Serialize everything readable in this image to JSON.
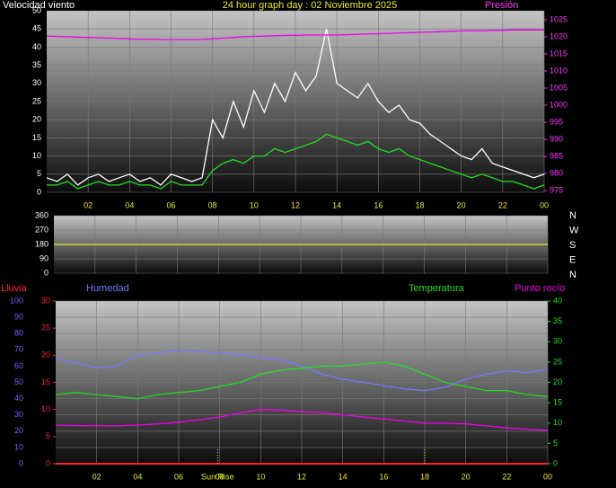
{
  "chart_data": [
    {
      "type": "line",
      "title": "24 hour graph day : 02 Noviembre 2025",
      "y_label": "Velocidad viento",
      "y2_label": "Presión",
      "axis_colors": {
        "y": "#ffffff",
        "y2": "#ff33ff"
      },
      "xlim": [
        0,
        24
      ],
      "xticks": [
        {
          "value": 2,
          "label": "02"
        },
        {
          "value": 4,
          "label": "04"
        },
        {
          "value": 6,
          "label": "06"
        },
        {
          "value": 8,
          "label": "08"
        },
        10,
        12,
        14,
        16,
        18,
        20,
        22,
        {
          "value": 24,
          "label": "00"
        }
      ],
      "ylim": [
        0,
        50
      ],
      "yticks": [
        0,
        5,
        10,
        15,
        20,
        25,
        30,
        35,
        40,
        45,
        50
      ],
      "y2lim": [
        974.5,
        1027.6
      ],
      "y2ticks": [
        975,
        980,
        985,
        990,
        995,
        1000,
        1005,
        1010,
        1015,
        1020,
        1025
      ],
      "grid": true,
      "x": [
        0,
        0.5,
        1,
        1.5,
        2,
        2.5,
        3,
        3.5,
        4,
        4.5,
        5,
        5.5,
        6,
        6.5,
        7,
        7.5,
        8,
        8.5,
        9,
        9.5,
        10,
        10.5,
        11,
        11.5,
        12,
        12.5,
        13,
        13.5,
        14,
        14.5,
        15,
        15.5,
        16,
        16.5,
        17,
        17.5,
        18,
        18.5,
        19,
        19.5,
        20,
        20.5,
        21,
        21.5,
        22,
        22.5,
        23,
        23.5,
        24
      ],
      "series": [
        {
          "color": "#ffffff",
          "values": [
            4,
            3,
            5,
            2,
            4,
            5,
            3,
            4,
            5,
            3,
            4,
            2,
            5,
            4,
            3,
            4,
            20,
            15,
            25,
            18,
            28,
            22,
            30,
            25,
            33,
            28,
            32,
            45,
            30,
            28,
            26,
            30,
            25,
            22,
            24,
            20,
            19,
            16,
            14,
            12,
            10,
            9,
            12,
            8,
            7,
            6,
            5,
            4,
            5
          ]
        },
        {
          "color": "#22dd22",
          "values": [
            2,
            2,
            3,
            1,
            2,
            3,
            2,
            2,
            3,
            2,
            2,
            1,
            3,
            2,
            2,
            2,
            6,
            8,
            9,
            8,
            10,
            10,
            12,
            11,
            12,
            13,
            14,
            16,
            15,
            14,
            13,
            14,
            12,
            11,
            12,
            10,
            9,
            8,
            7,
            6,
            5,
            4,
            5,
            4,
            3,
            3,
            2,
            1,
            2
          ]
        },
        {
          "color": "#ee00ee",
          "axis": "y2",
          "values": [
            1020.2,
            1020.1,
            1020,
            1019.9,
            1019.8,
            1019.7,
            1019.6,
            1019.5,
            1019.4,
            1019.3,
            1019.3,
            1019.2,
            1019.2,
            1019.2,
            1019.2,
            1019.2,
            1019.4,
            1019.6,
            1019.8,
            1020,
            1020.1,
            1020.2,
            1020.3,
            1020.4,
            1020.4,
            1020.5,
            1020.5,
            1020.5,
            1020.5,
            1020.6,
            1020.7,
            1020.8,
            1020.9,
            1021,
            1021.1,
            1021.2,
            1021.3,
            1021.4,
            1021.5,
            1021.6,
            1021.7,
            1021.8,
            1021.8,
            1021.9,
            1021.9,
            1022,
            1022,
            1022,
            1022
          ]
        }
      ]
    },
    {
      "type": "line",
      "axis_colors": {
        "y": "#ffffff",
        "y2": "#ffffff"
      },
      "xlim": [
        0,
        24
      ],
      "xticks": [
        2,
        4,
        6,
        8,
        10,
        12,
        14,
        16,
        18,
        20,
        22,
        24
      ],
      "ylim": [
        0,
        360
      ],
      "yticks": [
        0,
        90,
        180,
        270,
        360
      ],
      "y2_labels": [
        "N",
        "W",
        "S",
        "E",
        "N"
      ],
      "grid": true,
      "x": [
        0,
        24
      ],
      "series": [
        {
          "color": "#e8e830",
          "values": [
            180,
            180
          ]
        }
      ]
    },
    {
      "type": "line",
      "axis_colors": {
        "y": "#6666ff",
        "y2": "#22dd22",
        "y3": "#ff2222"
      },
      "xlim": [
        0,
        24
      ],
      "xticks": [
        {
          "value": 2,
          "label": "02"
        },
        {
          "value": 4,
          "label": "04"
        },
        {
          "value": 6,
          "label": "06"
        },
        {
          "value": 8,
          "label": "08"
        },
        10,
        12,
        14,
        16,
        18,
        20,
        22,
        {
          "value": 24,
          "label": "00"
        }
      ],
      "ylim": [
        0,
        100
      ],
      "yticks": [
        0,
        10,
        20,
        30,
        40,
        50,
        60,
        70,
        80,
        90,
        100
      ],
      "y2lim": [
        0,
        40
      ],
      "y2ticks": [
        0,
        5,
        10,
        15,
        20,
        25,
        30,
        35,
        40
      ],
      "y3lim": [
        0,
        30
      ],
      "y3ticks": [
        0,
        5,
        10,
        15,
        20,
        25,
        30
      ],
      "grid": true,
      "sunrise": {
        "value": 7.9,
        "label": "Sun Rise"
      },
      "sunset": 18,
      "x": [
        0,
        1,
        2,
        3,
        4,
        5,
        6,
        7,
        8,
        9,
        10,
        11,
        12,
        13,
        14,
        15,
        16,
        17,
        18,
        19,
        20,
        21,
        22,
        23,
        24
      ],
      "series": [
        {
          "name": "Humedad",
          "color": "#7777ff",
          "values": [
            65,
            62,
            59,
            60,
            67,
            68,
            70,
            69,
            68,
            67,
            65,
            64,
            60,
            55,
            52,
            50,
            48,
            46,
            45,
            47,
            52,
            55,
            57,
            56,
            58
          ]
        },
        {
          "name": "Temperatura",
          "color": "#22dd22",
          "axis": "y2",
          "values": [
            17,
            17.5,
            17,
            16.5,
            16,
            17,
            17.5,
            18,
            19,
            20,
            22,
            23,
            23.5,
            24,
            24,
            24.5,
            25,
            24,
            22,
            20,
            19,
            18,
            18,
            17,
            16.5
          ]
        },
        {
          "name": "Punto rocío",
          "color": "#ee00ee",
          "axis": "y2",
          "values": [
            9.5,
            9.4,
            9.3,
            9.3,
            9.5,
            9.8,
            10.2,
            10.8,
            11.5,
            12.5,
            13.3,
            13.2,
            12.8,
            12.5,
            12,
            11.5,
            11,
            10.5,
            10,
            10,
            9.8,
            9.3,
            8.8,
            8.5,
            8.2
          ]
        },
        {
          "name": "Lluvia",
          "color": "#ff2222",
          "axis": "y3",
          "values": [
            0,
            0,
            0,
            0,
            0,
            0,
            0,
            0,
            0,
            0,
            0,
            0,
            0,
            0,
            0,
            0,
            0,
            0,
            0,
            0,
            0,
            0,
            0,
            0,
            0
          ]
        }
      ]
    }
  ]
}
